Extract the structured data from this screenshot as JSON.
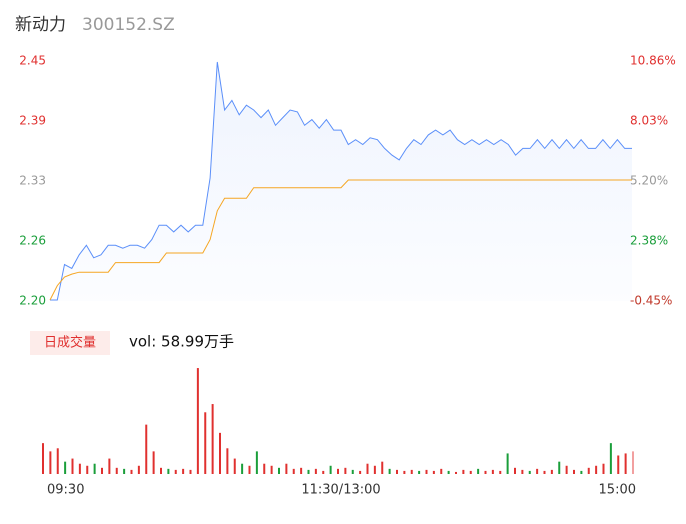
{
  "chart_data": [
    {
      "type": "line",
      "title": "新动力",
      "subtitle": "300152.SZ",
      "x": [
        0,
        3,
        6,
        9,
        12,
        15,
        18,
        21,
        24,
        27,
        30,
        33,
        36,
        39,
        42,
        45,
        48,
        51,
        54,
        57,
        60,
        63,
        66,
        69,
        72,
        75,
        78,
        81,
        84,
        87,
        90,
        93,
        96,
        99,
        102,
        105,
        108,
        111,
        114,
        117,
        120,
        123,
        126,
        129,
        132,
        135,
        138,
        141,
        144,
        147,
        150,
        153,
        156,
        159,
        162,
        165,
        168,
        171,
        174,
        177,
        180,
        183,
        186,
        189,
        192,
        195,
        198,
        201,
        204,
        207,
        210,
        213,
        216,
        219,
        222,
        225,
        228,
        231,
        234,
        237,
        240
      ],
      "xlim": [
        0,
        240
      ],
      "xticks": [
        {
          "value": 0,
          "label": "09:30"
        },
        {
          "value": 120,
          "label": "11:30/13:00"
        },
        {
          "value": 240,
          "label": "15:00"
        }
      ],
      "ylim": [
        2.2,
        2.45
      ],
      "yticks": [
        {
          "value": 2.2,
          "label": "2.20"
        },
        {
          "value": 2.2625,
          "label": "2.26"
        },
        {
          "value": 2.325,
          "label": "2.33"
        },
        {
          "value": 2.3875,
          "label": "2.39"
        },
        2.45
      ],
      "ytick_colors": [
        "#1a9e3a",
        "#1a9e3a",
        "#999999",
        "#e0302f",
        "#e0302f"
      ],
      "y2lim": [
        -0.45,
        10.86
      ],
      "y2ticks": [
        {
          "value": -0.45,
          "label": "-0.45%"
        },
        {
          "value": 2.38,
          "label": "2.38%"
        },
        {
          "value": 5.2,
          "label": "5.20%"
        },
        {
          "value": 8.03,
          "label": "8.03%"
        },
        {
          "value": 10.86,
          "label": "10.86%"
        }
      ],
      "y2tick_colors": [
        "#c0392b",
        "#1a9e3a",
        "#999999",
        "#e0302f",
        "#e0302f"
      ],
      "series": [
        {
          "color": "#5b8ff9",
          "values": [
            2.201,
            2.201,
            2.238,
            2.234,
            2.248,
            2.258,
            2.245,
            2.248,
            2.258,
            2.258,
            2.255,
            2.258,
            2.258,
            2.255,
            2.264,
            2.279,
            2.279,
            2.272,
            2.279,
            2.272,
            2.279,
            2.279,
            2.328,
            2.449,
            2.399,
            2.409,
            2.394,
            2.404,
            2.399,
            2.391,
            2.399,
            2.383,
            2.391,
            2.399,
            2.397,
            2.383,
            2.389,
            2.38,
            2.389,
            2.378,
            2.378,
            2.363,
            2.368,
            2.363,
            2.37,
            2.368,
            2.359,
            2.352,
            2.347,
            2.359,
            2.368,
            2.363,
            2.373,
            2.378,
            2.373,
            2.378,
            2.368,
            2.363,
            2.368,
            2.363,
            2.368,
            2.363,
            2.368,
            2.363,
            2.352,
            2.359,
            2.359,
            2.368,
            2.359,
            2.368,
            2.359,
            2.368,
            2.359,
            2.368,
            2.359,
            2.359,
            2.368,
            2.359,
            2.368,
            2.359,
            2.359
          ]
        },
        {
          "color": "#f5a623",
          "values": [
            2.201,
            2.216,
            2.225,
            2.228,
            2.23,
            2.23,
            2.23,
            2.23,
            2.23,
            2.24,
            2.24,
            2.24,
            2.24,
            2.24,
            2.24,
            2.24,
            2.25,
            2.25,
            2.25,
            2.25,
            2.25,
            2.25,
            2.264,
            2.294,
            2.307,
            2.307,
            2.307,
            2.307,
            2.318,
            2.318,
            2.318,
            2.318,
            2.318,
            2.318,
            2.318,
            2.318,
            2.318,
            2.318,
            2.318,
            2.318,
            2.318,
            2.326,
            2.326,
            2.326,
            2.326,
            2.326,
            2.326,
            2.326,
            2.326,
            2.326,
            2.326,
            2.326,
            2.326,
            2.326,
            2.326,
            2.326,
            2.326,
            2.326,
            2.326,
            2.326,
            2.326,
            2.326,
            2.326,
            2.326,
            2.326,
            2.326,
            2.326,
            2.326,
            2.326,
            2.326,
            2.326,
            2.326,
            2.326,
            2.326,
            2.326,
            2.326,
            2.326,
            2.326,
            2.326,
            2.326,
            2.326
          ]
        }
      ]
    },
    {
      "type": "bar",
      "legend": "日成交量",
      "annotation": "vol: 58.99万手",
      "x": [
        0,
        3,
        6,
        9,
        12,
        15,
        18,
        21,
        24,
        27,
        30,
        33,
        36,
        39,
        42,
        45,
        48,
        51,
        54,
        57,
        60,
        63,
        66,
        69,
        72,
        75,
        78,
        81,
        84,
        87,
        90,
        93,
        96,
        99,
        102,
        105,
        108,
        111,
        114,
        117,
        120,
        123,
        126,
        129,
        132,
        135,
        138,
        141,
        144,
        147,
        150,
        153,
        156,
        159,
        162,
        165,
        168,
        171,
        174,
        177,
        180,
        183,
        186,
        189,
        192,
        195,
        198,
        201,
        204,
        207,
        210,
        213,
        216,
        219,
        222,
        225,
        228,
        231,
        234,
        237,
        240
      ],
      "xlim": [
        0,
        240
      ],
      "ylim": [
        0,
        105
      ],
      "values": [
        30,
        22,
        25,
        12,
        15,
        10,
        8,
        10,
        6,
        15,
        6,
        5,
        4,
        8,
        48,
        22,
        6,
        5,
        4,
        5,
        4,
        103,
        60,
        68,
        40,
        25,
        15,
        10,
        8,
        22,
        10,
        8,
        6,
        10,
        5,
        6,
        4,
        5,
        3,
        8,
        5,
        6,
        4,
        3,
        10,
        8,
        12,
        5,
        4,
        3,
        4,
        3,
        4,
        3,
        5,
        3,
        2,
        4,
        3,
        5,
        3,
        4,
        3,
        20,
        6,
        4,
        3,
        5,
        3,
        4,
        12,
        8,
        4,
        3,
        6,
        8,
        10,
        30,
        18,
        20,
        22
      ],
      "colors": [
        "#e0302f",
        "#e0302f",
        "#e0302f",
        "#1a9e3a",
        "#e0302f",
        "#e0302f",
        "#e0302f",
        "#1a9e3a",
        "#e0302f",
        "#e0302f",
        "#e0302f",
        "#1a9e3a",
        "#e0302f",
        "#e0302f",
        "#e0302f",
        "#e0302f",
        "#e0302f",
        "#1a9e3a",
        "#e0302f",
        "#e0302f",
        "#e0302f",
        "#e0302f",
        "#e0302f",
        "#e0302f",
        "#e0302f",
        "#e0302f",
        "#e0302f",
        "#1a9e3a",
        "#e0302f",
        "#1a9e3a",
        "#e0302f",
        "#e0302f",
        "#1a9e3a",
        "#e0302f",
        "#e0302f",
        "#e0302f",
        "#1a9e3a",
        "#e0302f",
        "#e0302f",
        "#1a9e3a",
        "#e0302f",
        "#e0302f",
        "#1a9e3a",
        "#e0302f",
        "#e0302f",
        "#e0302f",
        "#e0302f",
        "#1a9e3a",
        "#e0302f",
        "#e0302f",
        "#e0302f",
        "#1a9e3a",
        "#e0302f",
        "#e0302f",
        "#e0302f",
        "#1a9e3a",
        "#e0302f",
        "#e0302f",
        "#e0302f",
        "#1a9e3a",
        "#e0302f",
        "#e0302f",
        "#e0302f",
        "#1a9e3a",
        "#e0302f",
        "#e0302f",
        "#1a9e3a",
        "#e0302f",
        "#e0302f",
        "#e0302f",
        "#1a9e3a",
        "#e0302f",
        "#e0302f",
        "#1a9e3a",
        "#e0302f",
        "#e0302f",
        "#e0302f",
        "#1a9e3a",
        "#e0302f",
        "#e0302f",
        "#f2a0a0"
      ]
    }
  ]
}
